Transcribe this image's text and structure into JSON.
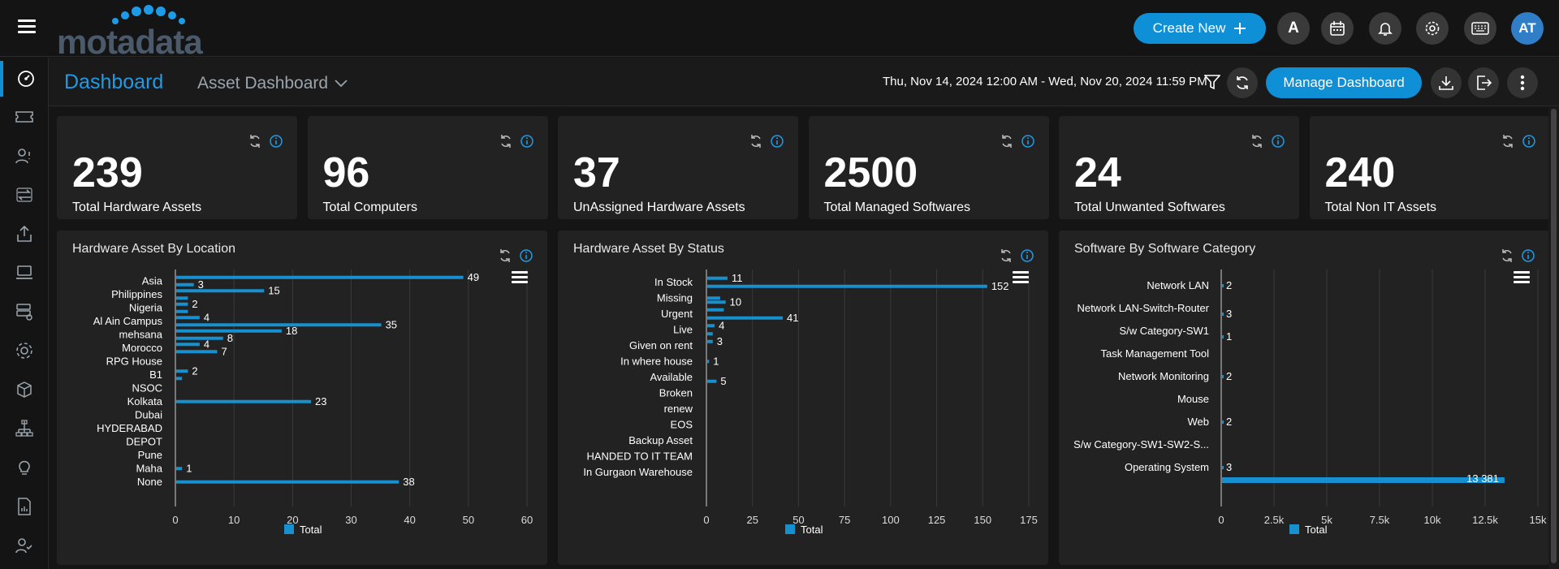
{
  "header": {
    "logo_text": "motadata",
    "create_label": "Create New",
    "user_initial": "A",
    "avatar_initials": "AT"
  },
  "subheader": {
    "title": "Dashboard",
    "dashboard_name": "Asset Dashboard",
    "date_range": "Thu, Nov 14, 2024 12:00 AM - Wed, Nov 20, 2024 11:59 PM",
    "manage_label": "Manage Dashboard"
  },
  "sidebar": [
    "dashboard-icon",
    "ticket-icon",
    "user-request-icon",
    "change-icon",
    "release-icon",
    "asset-icon",
    "cmdb-icon",
    "project-icon",
    "package-icon",
    "workflow-icon",
    "knowledge-icon",
    "report-icon",
    "user-check-icon"
  ],
  "kpis": [
    {
      "value": "239",
      "label": "Total Hardware Assets"
    },
    {
      "value": "96",
      "label": "Total Computers"
    },
    {
      "value": "37",
      "label": "UnAssigned Hardware Assets"
    },
    {
      "value": "2500",
      "label": "Total Managed Softwares"
    },
    {
      "value": "24",
      "label": "Total Unwanted Softwares"
    },
    {
      "value": "240",
      "label": "Total Non IT Assets"
    }
  ],
  "colors": {
    "accent": "#0e8fd6",
    "bar": "#1790d0"
  },
  "chart_data": [
    {
      "type": "bar",
      "title": "Hardware Asset By Location",
      "orientation": "horizontal",
      "categories": [
        "Asia",
        "Philippines",
        "Nigeria",
        "Al Ain Campus",
        "mehsana",
        "Morocco",
        "RPG House",
        "B1",
        "NSOC",
        "Kolkata",
        "Dubai",
        "HYDERABAD",
        "DEPOT",
        "Pune",
        "Maha",
        "None"
      ],
      "bars": [
        {
          "row": 0,
          "off": -1,
          "value": 49
        },
        {
          "row": 0,
          "off": 1,
          "value": 3
        },
        {
          "row": 1,
          "off": -1,
          "value": 15
        },
        {
          "row": 1,
          "off": 1,
          "value": 2
        },
        {
          "row": 2,
          "off": -1,
          "value": 2
        },
        {
          "row": 2,
          "off": 1,
          "value": 2
        },
        {
          "row": 3,
          "off": -1,
          "value": 4
        },
        {
          "row": 3,
          "off": 1,
          "value": 35
        },
        {
          "row": 4,
          "off": -1,
          "value": 18
        },
        {
          "row": 4,
          "off": 1,
          "value": 8
        },
        {
          "row": 5,
          "off": -1,
          "value": 4
        },
        {
          "row": 5,
          "off": 1,
          "value": 7
        },
        {
          "row": 7,
          "off": -1,
          "value": 2
        },
        {
          "row": 7,
          "off": 1,
          "value": 1
        },
        {
          "row": 9,
          "off": 0,
          "value": 23
        },
        {
          "row": 14,
          "off": 0,
          "value": 1
        },
        {
          "row": 15,
          "off": 0,
          "value": 38
        }
      ],
      "labels": [
        {
          "row": 0,
          "off": -1,
          "text": "49"
        },
        {
          "row": 0,
          "off": 1,
          "text": "3"
        },
        {
          "row": 1,
          "off": -1,
          "text": "15"
        },
        {
          "row": 2,
          "off": -1,
          "text": "2"
        },
        {
          "row": 3,
          "off": -1,
          "text": "4"
        },
        {
          "row": 3,
          "off": 1,
          "text": "35"
        },
        {
          "row": 4,
          "off": -1,
          "text": "18"
        },
        {
          "row": 4,
          "off": 1,
          "text": "8"
        },
        {
          "row": 5,
          "off": -1,
          "text": "4"
        },
        {
          "row": 5,
          "off": 1,
          "text": "7"
        },
        {
          "row": 7,
          "off": -1,
          "text": "2"
        },
        {
          "row": 9,
          "off": 0,
          "text": "23"
        },
        {
          "row": 14,
          "off": 0,
          "text": "1"
        },
        {
          "row": 15,
          "off": 0,
          "text": "38"
        }
      ],
      "ticks": [
        "0",
        "10",
        "20",
        "30",
        "40",
        "50",
        "60"
      ],
      "xlim": [
        0,
        60
      ],
      "legend": "Total",
      "grid": true
    },
    {
      "type": "bar",
      "title": "Hardware Asset By Status",
      "orientation": "horizontal",
      "categories": [
        "In Stock",
        "Missing",
        "Urgent",
        "Live",
        "Given on rent",
        "In where house",
        "Available",
        "Broken",
        "renew",
        "EOS",
        "Backup Asset",
        "HANDED TO IT TEAM",
        "In Gurgaon Warehouse"
      ],
      "bars": [
        {
          "row": 0,
          "off": -1,
          "value": 11
        },
        {
          "row": 0,
          "off": 1,
          "value": 152
        },
        {
          "row": 1,
          "off": 0,
          "value": 7
        },
        {
          "row": 1,
          "off": 1,
          "value": 10
        },
        {
          "row": 2,
          "off": -1,
          "value": 9
        },
        {
          "row": 2,
          "off": 1,
          "value": 41
        },
        {
          "row": 3,
          "off": -1,
          "value": 4
        },
        {
          "row": 3,
          "off": 1,
          "value": 3
        },
        {
          "row": 4,
          "off": -1,
          "value": 3
        },
        {
          "row": 5,
          "off": 0,
          "value": 1
        },
        {
          "row": 6,
          "off": 1,
          "value": 5
        }
      ],
      "labels": [
        {
          "row": 0,
          "off": -1,
          "text": "11"
        },
        {
          "row": 0,
          "off": 1,
          "text": "152"
        },
        {
          "row": 1,
          "off": 1,
          "text": "10"
        },
        {
          "row": 2,
          "off": 1,
          "text": "41"
        },
        {
          "row": 3,
          "off": -1,
          "text": "4"
        },
        {
          "row": 4,
          "off": -1,
          "text": "3"
        },
        {
          "row": 5,
          "off": 0,
          "text": "1"
        },
        {
          "row": 6,
          "off": 1,
          "text": "5"
        }
      ],
      "ticks": [
        "0",
        "25",
        "50",
        "75",
        "100",
        "125",
        "150",
        "175"
      ],
      "xlim": [
        0,
        175
      ],
      "legend": "Total",
      "grid": true
    },
    {
      "type": "bar",
      "title": "Software By Software Category",
      "orientation": "horizontal",
      "categories": [
        "Network LAN",
        "Network LAN-Switch-Router",
        "S/w Category-SW1",
        "Task Management Tool",
        "Network Monitoring",
        "Mouse",
        "Web",
        "S/w Category-SW1-SW2-S...",
        "Operating System"
      ],
      "bars": [
        {
          "row": 0,
          "off": 0,
          "value": 2
        },
        {
          "row": 1,
          "off": 1,
          "value": 3
        },
        {
          "row": 2,
          "off": 1,
          "value": 1
        },
        {
          "row": 4,
          "off": 0,
          "value": 2
        },
        {
          "row": 6,
          "off": 0,
          "value": 2
        },
        {
          "row": 8,
          "off": 0,
          "value": 3
        },
        {
          "row": 8,
          "off": 2,
          "value": 13381
        }
      ],
      "labels": [
        {
          "row": 0,
          "off": 0,
          "text": "2"
        },
        {
          "row": 1,
          "off": 1,
          "text": "3"
        },
        {
          "row": 2,
          "off": 1,
          "text": "1"
        },
        {
          "row": 4,
          "off": 0,
          "text": "2"
        },
        {
          "row": 6,
          "off": 0,
          "text": "2"
        },
        {
          "row": 8,
          "off": 0,
          "text": "3"
        },
        {
          "row": 8,
          "off": 2,
          "text": "13 381"
        }
      ],
      "ticks": [
        "0",
        "2.5k",
        "5k",
        "7.5k",
        "10k",
        "12.5k",
        "15k"
      ],
      "xlim": [
        0,
        15000
      ],
      "legend": "Total",
      "grid": true
    }
  ]
}
